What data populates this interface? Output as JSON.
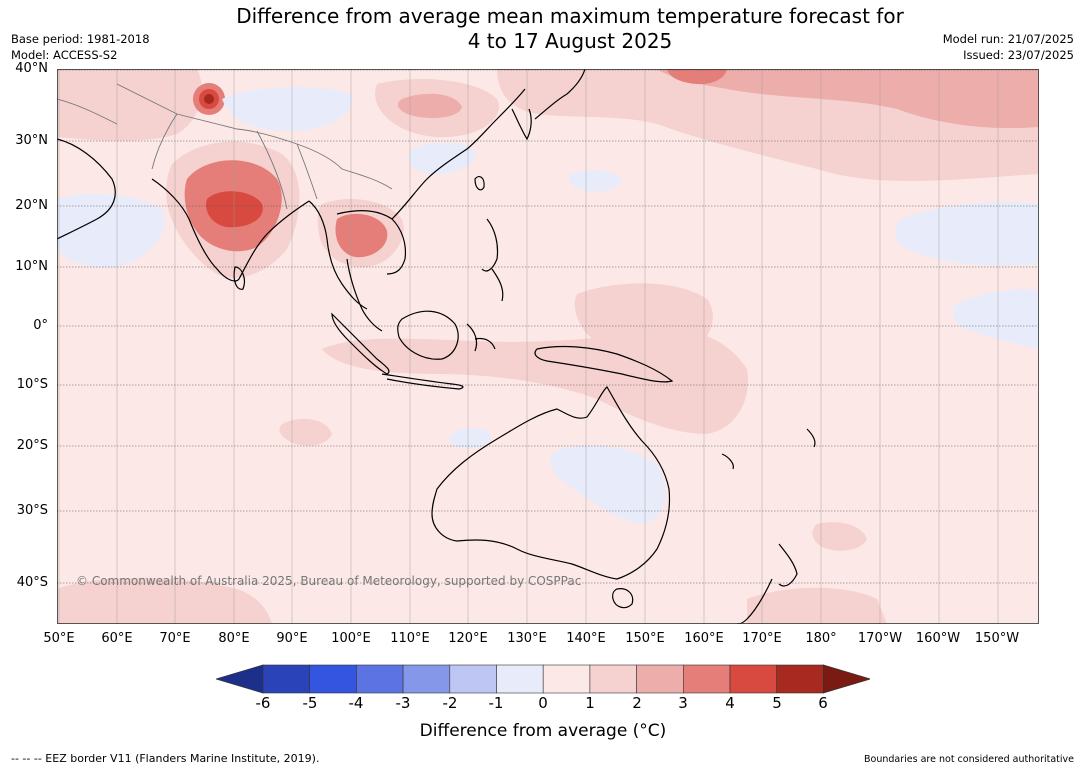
{
  "header": {
    "title_line1": "Difference from average mean maximum temperature forecast for",
    "title_line2": "4 to 17 August 2025",
    "base_period": "Base period: 1981-2018",
    "model": "Model: ACCESS-S2",
    "model_run": "Model run: 21/07/2025",
    "issued": "Issued: 23/07/2025"
  },
  "map": {
    "region": "Asia-Pacific, 50°E to 145°W, 45°S to 40°N",
    "latitude_labels": [
      "40°N",
      "30°N",
      "20°N",
      "10°N",
      "0°",
      "10°S",
      "20°S",
      "30°S",
      "40°S"
    ],
    "longitude_labels": [
      "50°E",
      "60°E",
      "70°E",
      "80°E",
      "90°E",
      "100°E",
      "110°E",
      "120°E",
      "130°E",
      "140°E",
      "150°E",
      "160°E",
      "170°E",
      "180°",
      "170°W",
      "160°W",
      "150°W"
    ],
    "copyright": "© Commonwealth of Australia 2025, Bureau of Meteorology, supported by COSPPac",
    "dominant_anomaly": "0 to 1",
    "warm_regions": [
      {
        "name": "Central India",
        "anomaly_max": "4 to 5"
      },
      {
        "name": "Northern Pakistan",
        "anomaly_max": "5 to 6"
      },
      {
        "name": "Thailand / Laos",
        "anomaly_max": "3 to 4"
      },
      {
        "name": "North Pacific near Japan",
        "anomaly_max": "2 to 3"
      }
    ],
    "cool_regions": [
      {
        "name": "Western Tibet / China",
        "anomaly": "-1 to 0"
      },
      {
        "name": "Arabian Sea",
        "anomaly": "-1 to 0"
      },
      {
        "name": "Eastern Australia",
        "anomaly": "-1 to 0"
      },
      {
        "name": "Central North Pacific",
        "anomaly": "-1 to 0"
      }
    ]
  },
  "colorbar": {
    "ticks": [
      "-6",
      "-5",
      "-4",
      "-3",
      "-2",
      "-1",
      "0",
      "1",
      "2",
      "3",
      "4",
      "5",
      "6"
    ],
    "colors": [
      "#1c2f8a",
      "#2a43b8",
      "#3455e0",
      "#5c74e3",
      "#8597e8",
      "#bec7f3",
      "#e8ebf9",
      "#fce9e7",
      "#f5d2d0",
      "#edaeab",
      "#e57e78",
      "#d8493f",
      "#a8291f",
      "#7a1a12"
    ],
    "label": "Difference from average (°C)"
  },
  "footer": {
    "eez": "--  --  -- EEZ border V11 (Flanders Marine Institute, 2019).",
    "boundaries": "Boundaries are not considered authoritative"
  }
}
